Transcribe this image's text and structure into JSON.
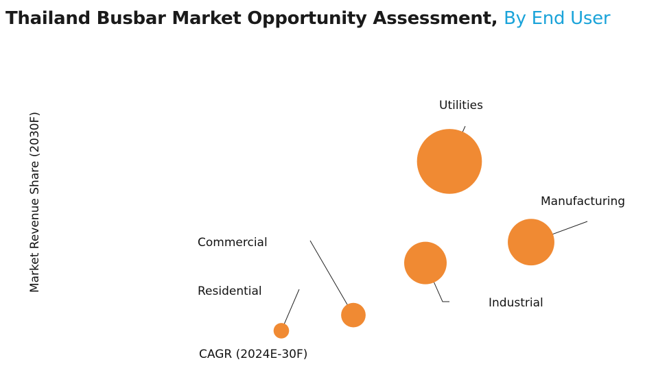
{
  "title": {
    "main": "Thailand Busbar Market Opportunity Assessment,",
    "accent": "By End User"
  },
  "colors": {
    "accent": "#1aa3d9",
    "bubble": "#f08a33",
    "leader": "#222222"
  },
  "chart_data": {
    "type": "scatter",
    "title": "Thailand Busbar Market Opportunity Assessment, By End User",
    "xlabel": "CAGR (2024E-30F)",
    "ylabel": "Market Revenue Share (2030F)",
    "xlim": [
      0,
      100
    ],
    "ylim": [
      0,
      100
    ],
    "grid": false,
    "series": [
      {
        "name": "Residential",
        "x": 30,
        "y": 2,
        "size": 2
      },
      {
        "name": "Commercial",
        "x": 45,
        "y": 8,
        "size": 5
      },
      {
        "name": "Industrial",
        "x": 60,
        "y": 28,
        "size": 15
      },
      {
        "name": "Manufacturing",
        "x": 82,
        "y": 36,
        "size": 18
      },
      {
        "name": "Utilities",
        "x": 65,
        "y": 67,
        "size": 35
      }
    ]
  }
}
